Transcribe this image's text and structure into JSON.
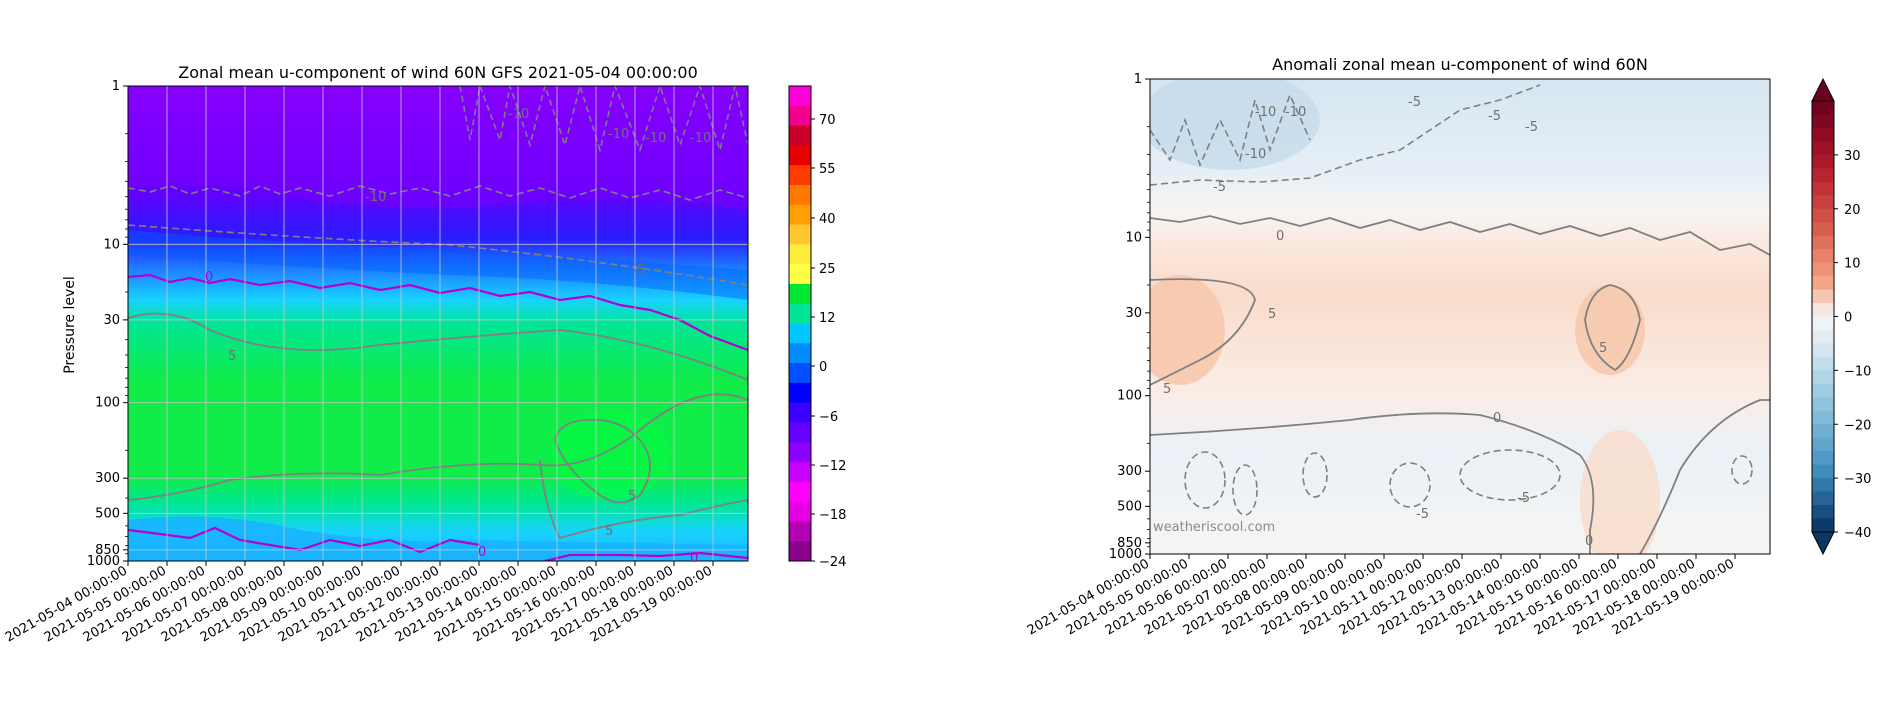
{
  "chart_data": [
    {
      "type": "heatmap",
      "title": "Zonal mean u-component of wind 60N GFS 2021-05-04 00:00:00",
      "xlabel": "",
      "ylabel": "Pressure level",
      "x_ticks": [
        "2021-05-04 00:00:00",
        "2021-05-05 00:00:00",
        "2021-05-06 00:00:00",
        "2021-05-07 00:00:00",
        "2021-05-08 00:00:00",
        "2021-05-09 00:00:00",
        "2021-05-10 00:00:00",
        "2021-05-11 00:00:00",
        "2021-05-12 00:00:00",
        "2021-05-13 00:00:00",
        "2021-05-14 00:00:00",
        "2021-05-15 00:00:00",
        "2021-05-16 00:00:00",
        "2021-05-17 00:00:00",
        "2021-05-18 00:00:00",
        "2021-05-19 00:00:00"
      ],
      "y_ticks": [
        "1",
        "10",
        "30",
        "100",
        "300",
        "500",
        "850",
        "1000"
      ],
      "y_scale": "log",
      "y_inverted": true,
      "grid": true,
      "colorbar_ticks": [
        "70",
        "55",
        "40",
        "25",
        "12",
        "0",
        "−6",
        "−12",
        "−18",
        "−24"
      ],
      "colorbar_colors": [
        "#ff00dd",
        "#f0008c",
        "#c80028",
        "#e60000",
        "#ff3c00",
        "#ff7800",
        "#ffa000",
        "#ffc832",
        "#ffeb3c",
        "#ffff46",
        "#00e632",
        "#00e696",
        "#00c8ff",
        "#008cff",
        "#0050ff",
        "#0000ff",
        "#3c00ff",
        "#6400ff",
        "#8c00ff",
        "#c800ff",
        "#ff00ff",
        "#e600e6",
        "#b400b4",
        "#8c008c"
      ],
      "contour_labels": [
        "0",
        "0",
        "0",
        "5",
        "5",
        "5",
        "-5",
        "-10",
        "-10",
        "-10",
        "-10",
        "-10"
      ],
      "bands": [
        {
          "pressure": 1,
          "value": -16
        },
        {
          "pressure": 5,
          "value": -14
        },
        {
          "pressure": 10,
          "value": -8
        },
        {
          "pressure": 17,
          "value": -2
        },
        {
          "pressure": 30,
          "value": 6
        },
        {
          "pressure": 100,
          "value": 8
        },
        {
          "pressure": 300,
          "value": 3
        },
        {
          "pressure": 850,
          "value": -2
        }
      ]
    },
    {
      "type": "heatmap",
      "title": "Anomali zonal mean u-component of wind 60N",
      "xlabel": "",
      "ylabel": "",
      "x_ticks": [
        "2021-05-04 00:00:00",
        "2021-05-05 00:00:00",
        "2021-05-06 00:00:00",
        "2021-05-07 00:00:00",
        "2021-05-08 00:00:00",
        "2021-05-09 00:00:00",
        "2021-05-10 00:00:00",
        "2021-05-11 00:00:00",
        "2021-05-12 00:00:00",
        "2021-05-13 00:00:00",
        "2021-05-14 00:00:00",
        "2021-05-15 00:00:00",
        "2021-05-16 00:00:00",
        "2021-05-17 00:00:00",
        "2021-05-18 00:00:00",
        "2021-05-19 00:00:00"
      ],
      "y_ticks": [
        "1",
        "10",
        "30",
        "100",
        "300",
        "500",
        "850",
        "1000"
      ],
      "y_scale": "log",
      "y_inverted": true,
      "colorbar_ticks": [
        "30",
        "20",
        "10",
        "0",
        "−10",
        "−20",
        "−30",
        "−40"
      ],
      "colorbar_range": [
        -40,
        40
      ],
      "contour_labels": [
        "-10",
        "-10",
        "-10",
        "-5",
        "-5",
        "-5",
        "-5",
        "0",
        "0",
        "5",
        "5",
        "5",
        "-5",
        "-5",
        "0"
      ],
      "watermark": "weatheriscool.com"
    }
  ]
}
